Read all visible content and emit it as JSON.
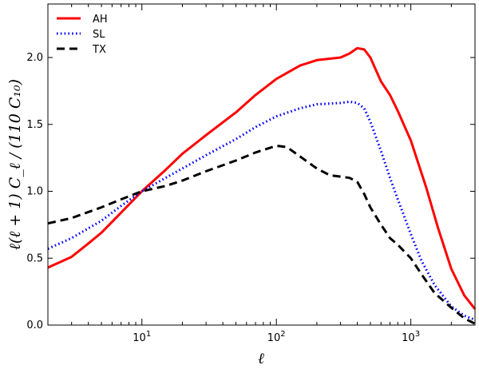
{
  "chart_data": {
    "type": "line",
    "title": "",
    "xlabel": "ℓ",
    "ylabel": "ℓ(ℓ + 1) C_ℓ / (110 C₁₀)",
    "xscale": "log",
    "xlim": [
      2,
      3000
    ],
    "ylim": [
      0.0,
      2.4
    ],
    "x_ticks": [
      {
        "value": 10,
        "base": "10",
        "exp": "1"
      },
      {
        "value": 100,
        "base": "10",
        "exp": "2"
      },
      {
        "value": 1000,
        "base": "10",
        "exp": "3"
      }
    ],
    "y_ticks": [
      {
        "value": 0.0,
        "label": "0.0"
      },
      {
        "value": 0.5,
        "label": "0.5"
      },
      {
        "value": 1.0,
        "label": "1.0"
      },
      {
        "value": 1.5,
        "label": "1.5"
      },
      {
        "value": 2.0,
        "label": "2.0"
      }
    ],
    "legend_location": "top-left",
    "series": [
      {
        "name": "AH",
        "color": "#ff0000",
        "style": "solid",
        "points": [
          [
            2,
            0.43
          ],
          [
            3,
            0.51
          ],
          [
            4,
            0.61
          ],
          [
            5,
            0.69
          ],
          [
            7,
            0.84
          ],
          [
            10,
            1.0
          ],
          [
            15,
            1.16
          ],
          [
            20,
            1.28
          ],
          [
            30,
            1.42
          ],
          [
            50,
            1.59
          ],
          [
            70,
            1.72
          ],
          [
            100,
            1.84
          ],
          [
            150,
            1.94
          ],
          [
            200,
            1.98
          ],
          [
            300,
            2.0
          ],
          [
            350,
            2.03
          ],
          [
            400,
            2.07
          ],
          [
            450,
            2.06
          ],
          [
            500,
            2.0
          ],
          [
            600,
            1.82
          ],
          [
            700,
            1.72
          ],
          [
            800,
            1.6
          ],
          [
            1000,
            1.38
          ],
          [
            1300,
            1.03
          ],
          [
            1600,
            0.72
          ],
          [
            2000,
            0.42
          ],
          [
            2500,
            0.22
          ],
          [
            3000,
            0.12
          ]
        ]
      },
      {
        "name": "SL",
        "color": "#0000ff",
        "style": "dotted",
        "points": [
          [
            2,
            0.57
          ],
          [
            3,
            0.65
          ],
          [
            5,
            0.78
          ],
          [
            7,
            0.89
          ],
          [
            10,
            1.0
          ],
          [
            15,
            1.1
          ],
          [
            20,
            1.17
          ],
          [
            30,
            1.27
          ],
          [
            50,
            1.39
          ],
          [
            70,
            1.48
          ],
          [
            100,
            1.56
          ],
          [
            150,
            1.62
          ],
          [
            200,
            1.65
          ],
          [
            300,
            1.66
          ],
          [
            350,
            1.67
          ],
          [
            400,
            1.66
          ],
          [
            450,
            1.62
          ],
          [
            500,
            1.52
          ],
          [
            600,
            1.3
          ],
          [
            700,
            1.1
          ],
          [
            800,
            0.94
          ],
          [
            1000,
            0.68
          ],
          [
            1200,
            0.48
          ],
          [
            1500,
            0.3
          ],
          [
            2000,
            0.14
          ],
          [
            2500,
            0.07
          ],
          [
            3000,
            0.04
          ]
        ]
      },
      {
        "name": "TX",
        "color": "#000000",
        "style": "dashed",
        "points": [
          [
            2,
            0.76
          ],
          [
            3,
            0.8
          ],
          [
            5,
            0.88
          ],
          [
            7,
            0.94
          ],
          [
            10,
            1.0
          ],
          [
            15,
            1.04
          ],
          [
            20,
            1.08
          ],
          [
            30,
            1.15
          ],
          [
            50,
            1.23
          ],
          [
            70,
            1.29
          ],
          [
            100,
            1.34
          ],
          [
            120,
            1.33
          ],
          [
            150,
            1.26
          ],
          [
            200,
            1.17
          ],
          [
            250,
            1.12
          ],
          [
            300,
            1.11
          ],
          [
            350,
            1.1
          ],
          [
            400,
            1.07
          ],
          [
            450,
            0.98
          ],
          [
            500,
            0.88
          ],
          [
            600,
            0.75
          ],
          [
            700,
            0.65
          ],
          [
            800,
            0.6
          ],
          [
            1000,
            0.5
          ],
          [
            1200,
            0.38
          ],
          [
            1500,
            0.24
          ],
          [
            2000,
            0.13
          ],
          [
            2500,
            0.05
          ],
          [
            3000,
            0.01
          ]
        ]
      }
    ]
  }
}
